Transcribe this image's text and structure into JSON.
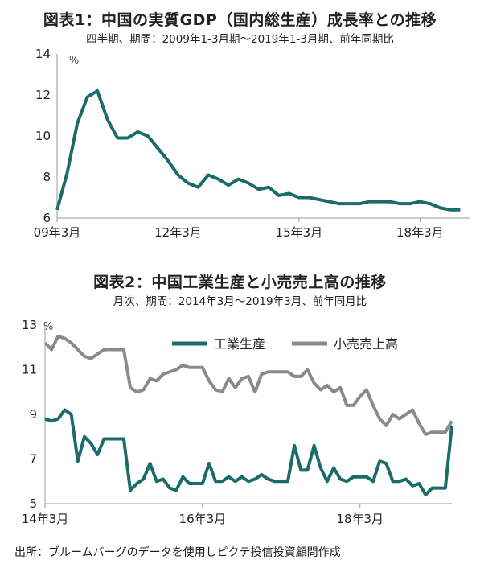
{
  "chart_data": [
    {
      "type": "line",
      "title": "図表1：中国の実質GDP（国内総生産）成長率との推移",
      "subtitle": "四半期、期間：2009年1-3月期～2019年1-3月期、前年同期比",
      "unit": "%",
      "xlabels": [
        "09年3月",
        "12年3月",
        "15年3月",
        "18年3月"
      ],
      "yticks": [
        6,
        8,
        10,
        12,
        14
      ],
      "ylim": [
        6,
        14
      ],
      "grid": false,
      "series": [
        {
          "color": "#1a6b6b",
          "x": [
            "09Q1",
            "09Q2",
            "09Q3",
            "09Q4",
            "10Q1",
            "10Q2",
            "10Q3",
            "10Q4",
            "11Q1",
            "11Q2",
            "11Q3",
            "11Q4",
            "12Q1",
            "12Q2",
            "12Q3",
            "12Q4",
            "13Q1",
            "13Q2",
            "13Q3",
            "13Q4",
            "14Q1",
            "14Q2",
            "14Q3",
            "14Q4",
            "15Q1",
            "15Q2",
            "15Q3",
            "15Q4",
            "16Q1",
            "16Q2",
            "16Q3",
            "16Q4",
            "17Q1",
            "17Q2",
            "17Q3",
            "17Q4",
            "18Q1",
            "18Q2",
            "18Q3",
            "18Q4",
            "19Q1"
          ],
          "values": [
            6.4,
            8.2,
            10.6,
            11.9,
            12.2,
            10.8,
            9.9,
            9.9,
            10.2,
            10.0,
            9.4,
            8.8,
            8.1,
            7.7,
            7.5,
            8.1,
            7.9,
            7.6,
            7.9,
            7.7,
            7.4,
            7.5,
            7.1,
            7.2,
            7.0,
            7.0,
            6.9,
            6.8,
            6.7,
            6.7,
            6.7,
            6.8,
            6.8,
            6.8,
            6.7,
            6.7,
            6.8,
            6.7,
            6.5,
            6.4,
            6.4
          ]
        }
      ]
    },
    {
      "type": "line",
      "title": "図表2：中国工業生産と小売売上高の推移",
      "subtitle": "月次、期間：2014年3月～2019年3月、前年同月比",
      "unit": "%",
      "xlabels": [
        "14年3月",
        "16年3月",
        "18年3月"
      ],
      "yticks": [
        5,
        7,
        9,
        11,
        13
      ],
      "ylim": [
        5,
        13
      ],
      "grid": false,
      "legend": "top-right",
      "series": [
        {
          "name": "工業生産",
          "color": "#1a6b6b",
          "values": [
            8.8,
            8.7,
            8.8,
            9.2,
            9.0,
            6.9,
            8.0,
            7.7,
            7.2,
            7.9,
            7.9,
            7.9,
            7.9,
            5.6,
            5.9,
            6.1,
            6.8,
            6.0,
            6.1,
            5.7,
            5.6,
            6.2,
            5.9,
            5.9,
            5.9,
            6.8,
            6.0,
            6.0,
            6.2,
            6.0,
            6.2,
            6.0,
            6.1,
            6.3,
            6.1,
            6.0,
            6.0,
            6.0,
            7.6,
            6.5,
            6.5,
            7.6,
            6.6,
            6.0,
            6.6,
            6.1,
            6.0,
            6.2,
            6.2,
            6.2,
            6.0,
            6.9,
            6.8,
            6.0,
            6.0,
            6.1,
            5.8,
            5.9,
            5.4,
            5.7,
            5.7,
            5.7,
            8.5
          ]
        },
        {
          "name": "小売売上高",
          "color": "#8a8a8a",
          "values": [
            12.2,
            11.9,
            12.5,
            12.4,
            12.2,
            11.9,
            11.6,
            11.5,
            11.7,
            11.9,
            11.9,
            11.9,
            11.9,
            10.2,
            10.0,
            10.1,
            10.6,
            10.5,
            10.8,
            10.9,
            11.0,
            11.2,
            11.1,
            11.1,
            11.1,
            10.5,
            10.1,
            10.0,
            10.6,
            10.2,
            10.6,
            10.7,
            10.0,
            10.8,
            10.9,
            10.9,
            10.9,
            10.9,
            10.7,
            10.7,
            11.0,
            10.4,
            10.1,
            10.3,
            10.0,
            10.2,
            9.4,
            9.4,
            9.8,
            10.1,
            9.4,
            8.8,
            8.5,
            9.0,
            8.8,
            9.0,
            9.2,
            8.6,
            8.1,
            8.2,
            8.2,
            8.2,
            8.7
          ]
        }
      ]
    }
  ],
  "source": "出所：ブルームバーグのデータを使用しピクテ投信投資顧問作成"
}
